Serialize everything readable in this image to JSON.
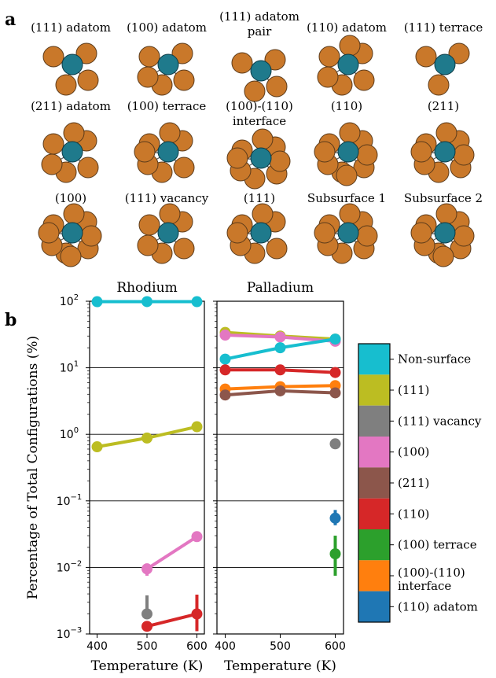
{
  "panel_a": {
    "letter": "a",
    "sites": [
      {
        "label_lines": [
          "(111) adatom"
        ],
        "n": 4
      },
      {
        "label_lines": [
          "(100) adatom"
        ],
        "n": 5
      },
      {
        "label_lines": [
          "(111) adatom",
          "pair"
        ],
        "n": 4
      },
      {
        "label_lines": [
          "(110) adatom"
        ],
        "n": 6
      },
      {
        "label_lines": [
          "(111) terrace"
        ],
        "n": 3
      },
      {
        "label_lines": [
          "(211) adatom"
        ],
        "n": 6
      },
      {
        "label_lines": [
          "(100) terrace"
        ],
        "n": 7
      },
      {
        "label_lines": [
          "(100)-(110)",
          "interface"
        ],
        "n": 8
      },
      {
        "label_lines": [
          "(110)"
        ],
        "n": 9
      },
      {
        "label_lines": [
          "(211)"
        ],
        "n": 8
      },
      {
        "label_lines": [
          "(100)"
        ],
        "n": 9
      },
      {
        "label_lines": [
          "(111) vacancy"
        ],
        "n": 6
      },
      {
        "label_lines": [
          "(111)"
        ],
        "n": 7
      },
      {
        "label_lines": [
          "Subsurface 1"
        ],
        "n": 8
      },
      {
        "label_lines": [
          "Subsurface 2"
        ],
        "n": 9
      }
    ],
    "colors": {
      "center": "#1f7a8c",
      "neighbor": "#c9782a",
      "edge": "#5a3a1a"
    }
  },
  "panel_b": {
    "letter": "b"
  },
  "chart_data": {
    "type": "line",
    "xlabel": "Temperature (K)",
    "ylabel": "Percentage of Total Configurations (%)",
    "yscale": "log",
    "ylim": [
      0.001,
      100
    ],
    "y_ticks": [
      {
        "value": 0.001,
        "base": "10",
        "exp": "−3"
      },
      {
        "value": 0.01,
        "base": "10",
        "exp": "−2"
      },
      {
        "value": 0.1,
        "base": "10",
        "exp": "−1"
      },
      {
        "value": 1,
        "base": "10",
        "exp": "0"
      },
      {
        "value": 10,
        "base": "10",
        "exp": "1"
      },
      {
        "value": 100,
        "base": "10",
        "exp": "2"
      }
    ],
    "xlim": [
      385,
      615
    ],
    "x_ticks": [
      "400",
      "500",
      "600"
    ],
    "grid": "horizontal",
    "legend": [
      {
        "name": "Non-surface",
        "color": "#17becf"
      },
      {
        "name": "(111)",
        "color": "#bcbd22"
      },
      {
        "name": "(111) vacancy",
        "color": "#7f7f7f"
      },
      {
        "name": "(100)",
        "color": "#e377c2"
      },
      {
        "name": "(211)",
        "color": "#8c564b"
      },
      {
        "name": "(110)",
        "color": "#d62728"
      },
      {
        "name": "(100) terrace",
        "color": "#2ca02c"
      },
      {
        "name": "(100)-(110) interface",
        "color": "#ff7f0e"
      },
      {
        "name": "(110) adatom",
        "color": "#1f77b4"
      }
    ],
    "panels": [
      {
        "title": "Rhodium",
        "series": [
          {
            "name": "Non-surface",
            "x": [
              400,
              500,
              600
            ],
            "y": [
              98.5,
              98.8,
              98.6
            ]
          },
          {
            "name": "(111)",
            "x": [
              400,
              500,
              600
            ],
            "y": [
              0.65,
              0.88,
              1.3
            ]
          },
          {
            "name": "(100)",
            "x": [
              500,
              600
            ],
            "y": [
              0.0095,
              0.029
            ],
            "err": [
              0.002,
              0
            ]
          },
          {
            "name": "(110)",
            "x": [
              500,
              600
            ],
            "y": [
              0.0013,
              0.002
            ],
            "err_lo": [
              0,
              0.0009
            ],
            "err_hi": [
              0,
              0.0019
            ]
          },
          {
            "name": "(111) vacancy",
            "x": [
              500
            ],
            "y": [
              0.002
            ],
            "err_lo": [
              0
            ],
            "err_hi": [
              0.0018
            ]
          }
        ]
      },
      {
        "title": "Palladium",
        "series": [
          {
            "name": "(111)",
            "x": [
              400,
              500,
              600
            ],
            "y": [
              34,
              30,
              27
            ]
          },
          {
            "name": "(100)",
            "x": [
              400,
              500,
              600
            ],
            "y": [
              31,
              29,
              25
            ]
          },
          {
            "name": "Non-surface",
            "x": [
              400,
              500,
              600
            ],
            "y": [
              13.5,
              20,
              27
            ]
          },
          {
            "name": "(110)",
            "x": [
              400,
              500,
              600
            ],
            "y": [
              9.3,
              9.3,
              8.5
            ]
          },
          {
            "name": "(100)-(110) interface",
            "x": [
              400,
              500,
              600
            ],
            "y": [
              4.8,
              5.2,
              5.4
            ]
          },
          {
            "name": "(211)",
            "x": [
              400,
              500,
              600
            ],
            "y": [
              3.9,
              4.5,
              4.2
            ]
          },
          {
            "name": "(111) vacancy",
            "x": [
              600
            ],
            "y": [
              0.72
            ]
          },
          {
            "name": "(110) adatom",
            "x": [
              600
            ],
            "y": [
              0.055
            ],
            "err_lo": [
              0.012
            ],
            "err_hi": [
              0.018
            ]
          },
          {
            "name": "(100) terrace",
            "x": [
              600
            ],
            "y": [
              0.016
            ],
            "err_lo": [
              0.0085
            ],
            "err_hi": [
              0.014
            ]
          }
        ]
      }
    ]
  }
}
